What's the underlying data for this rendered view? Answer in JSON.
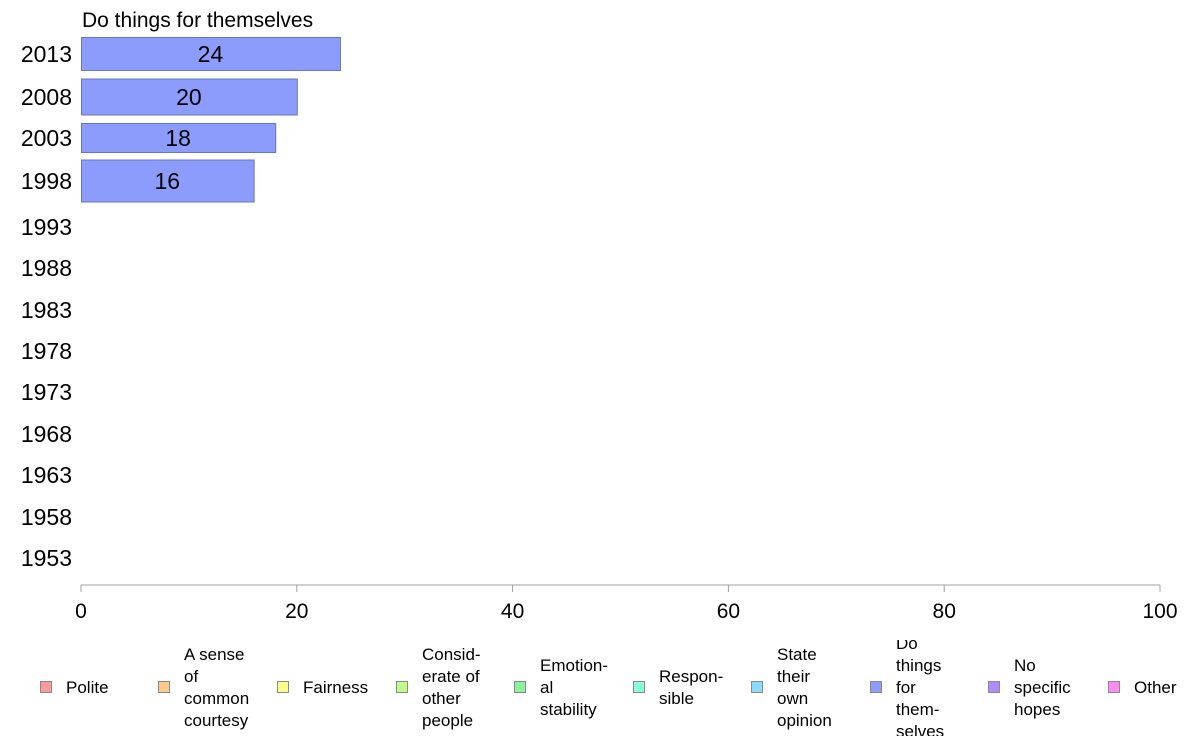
{
  "chart_data": {
    "type": "bar",
    "orientation": "horizontal",
    "title": "Do things for themselves",
    "categories": [
      "2013",
      "2008",
      "2003",
      "1998",
      "1993",
      "1988",
      "1983",
      "1978",
      "1973",
      "1968",
      "1963",
      "1958",
      "1953"
    ],
    "series": [
      {
        "name": "Do things for themselves",
        "values": [
          24,
          20,
          18,
          16,
          null,
          null,
          null,
          null,
          null,
          null,
          null,
          null,
          null
        ],
        "data_labels": [
          "24",
          "20",
          "18",
          "16",
          "",
          "",
          "",
          "",
          "",
          "",
          "",
          "",
          ""
        ]
      }
    ],
    "xlim": [
      0,
      100
    ],
    "x_ticks": [
      "0",
      "20",
      "40",
      "60",
      "80",
      "100"
    ],
    "grid": false,
    "legend_position": "bottom",
    "bar_color": "#8b9cfd"
  },
  "legend": [
    {
      "label": "Polite",
      "color": "#f89b9b"
    },
    {
      "label": "A sense\nof\ncommon\ncourtesy",
      "color": "#fcc98b"
    },
    {
      "label": "Fairness",
      "color": "#fcfc8b"
    },
    {
      "label": "Consid-\nerate of\nother\npeople",
      "color": "#bffc8b"
    },
    {
      "label": "Emotion-\nal\nstability",
      "color": "#8bf49b"
    },
    {
      "label": "Respon-\nsible",
      "color": "#8bfcdc"
    },
    {
      "label": "State\ntheir\nown\nopinion",
      "color": "#8bdcfc"
    },
    {
      "label": "Do\nthings\nfor\nthem-\nselves",
      "color": "#8b9cfd"
    },
    {
      "label": "No\nspecific\nhopes",
      "color": "#b08bfc"
    },
    {
      "label": "Other",
      "color": "#fc8bf4"
    }
  ]
}
